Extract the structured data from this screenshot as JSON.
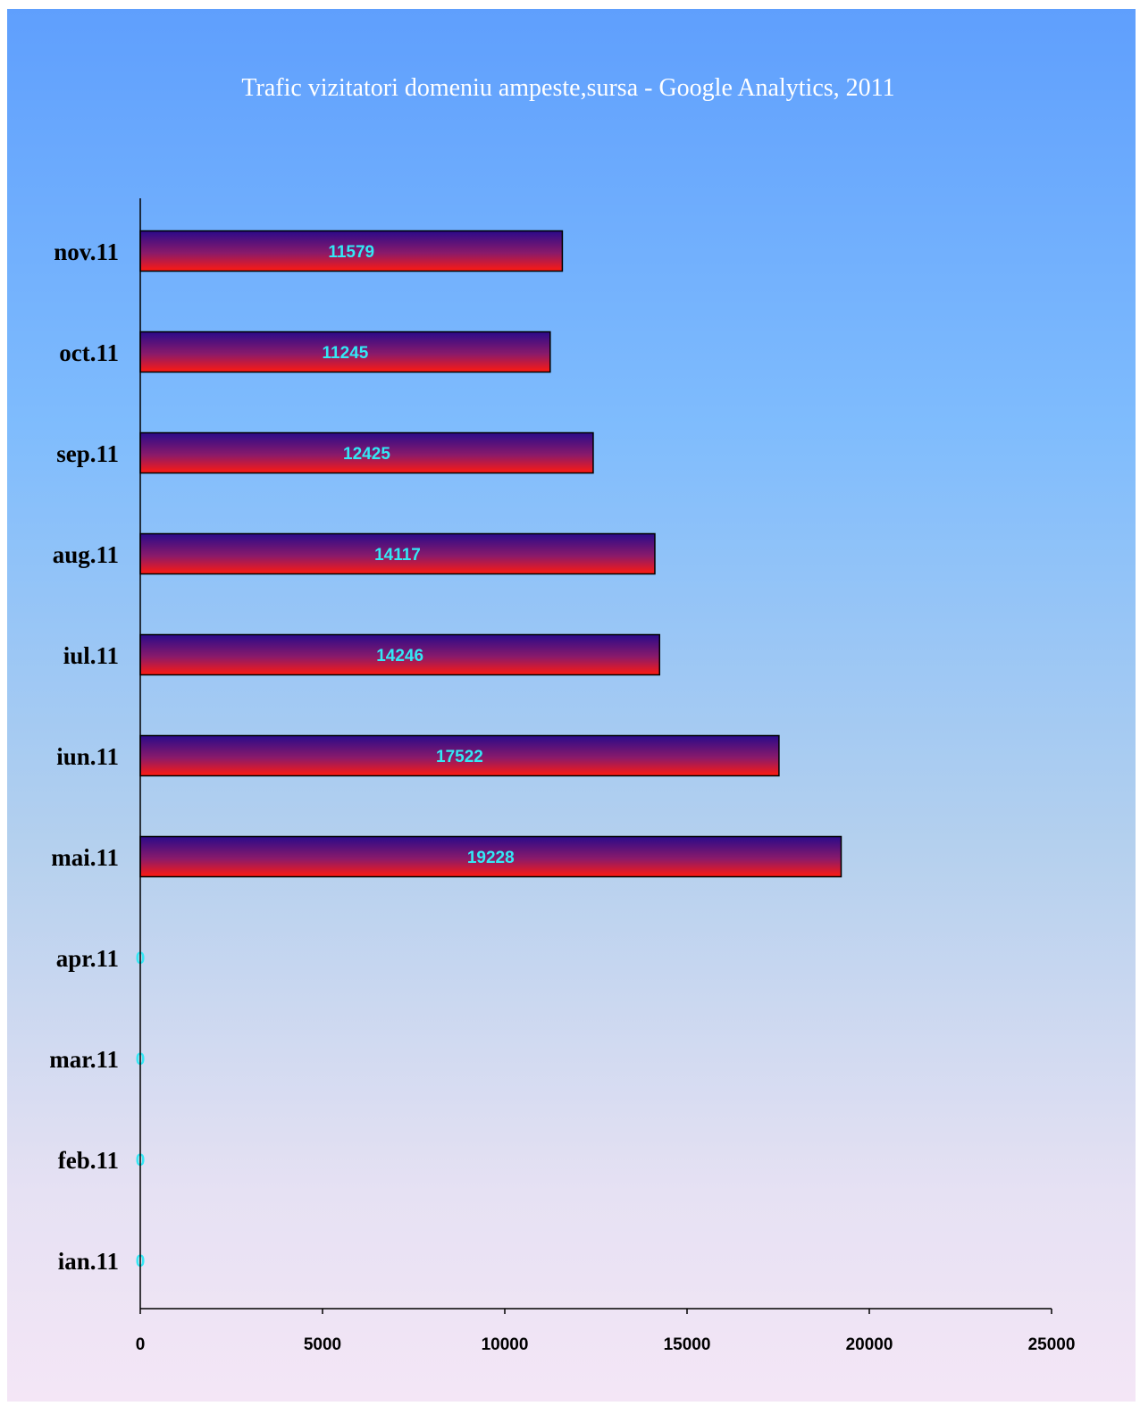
{
  "chart_data": {
    "type": "bar",
    "orientation": "horizontal",
    "title": "Trafic vizitatori domeniu ampeste,sursa - Google Analytics, 2011",
    "categories": [
      "nov.11",
      "oct.11",
      "sep.11",
      "aug.11",
      "iul.11",
      "iun.11",
      "mai.11",
      "apr.11",
      "mar.11",
      "feb.11",
      "ian.11"
    ],
    "values": [
      11579,
      11245,
      12425,
      14117,
      14246,
      17522,
      19228,
      0,
      0,
      0,
      0
    ],
    "data_labels": [
      "11579",
      "11245",
      "12425",
      "14117",
      "14246",
      "17522",
      "19228",
      "0",
      "0",
      "0",
      "0"
    ],
    "xlim": [
      0,
      25000
    ],
    "x_ticks": [
      0,
      5000,
      10000,
      15000,
      20000,
      25000
    ],
    "x_tick_labels": [
      "0",
      "5000",
      "10000",
      "15000",
      "20000",
      "25000"
    ],
    "xlabel": "",
    "ylabel": "",
    "grid": false,
    "legend": "none",
    "colors": {
      "bar_top": "#2a0a8a",
      "bar_bottom": "#ff1a10",
      "data_label": "#33e8f5",
      "title": "#ffffff",
      "axis": "#000000"
    }
  }
}
